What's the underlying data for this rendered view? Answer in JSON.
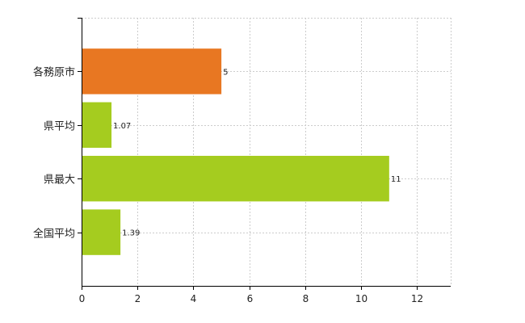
{
  "chart_data": {
    "type": "bar",
    "orientation": "horizontal",
    "categories": [
      "各務原市",
      "県平均",
      "県最大",
      "全国平均"
    ],
    "values": [
      5,
      1.07,
      11,
      1.39
    ],
    "value_labels": [
      "5",
      "1.07",
      "11",
      "1.39"
    ],
    "bar_colors": [
      "#E87722",
      "#A5CC1F",
      "#A5CC1F",
      "#A5CC1F"
    ],
    "xlim": [
      0,
      13.2
    ],
    "xticks": [
      0,
      2,
      4,
      6,
      8,
      10,
      12
    ],
    "xtick_labels": [
      "0",
      "2",
      "4",
      "6",
      "8",
      "10",
      "12"
    ],
    "grid": true,
    "grid_color": "#cccccc",
    "axis_color": "#000000",
    "title": "",
    "xlabel": "",
    "ylabel": ""
  }
}
